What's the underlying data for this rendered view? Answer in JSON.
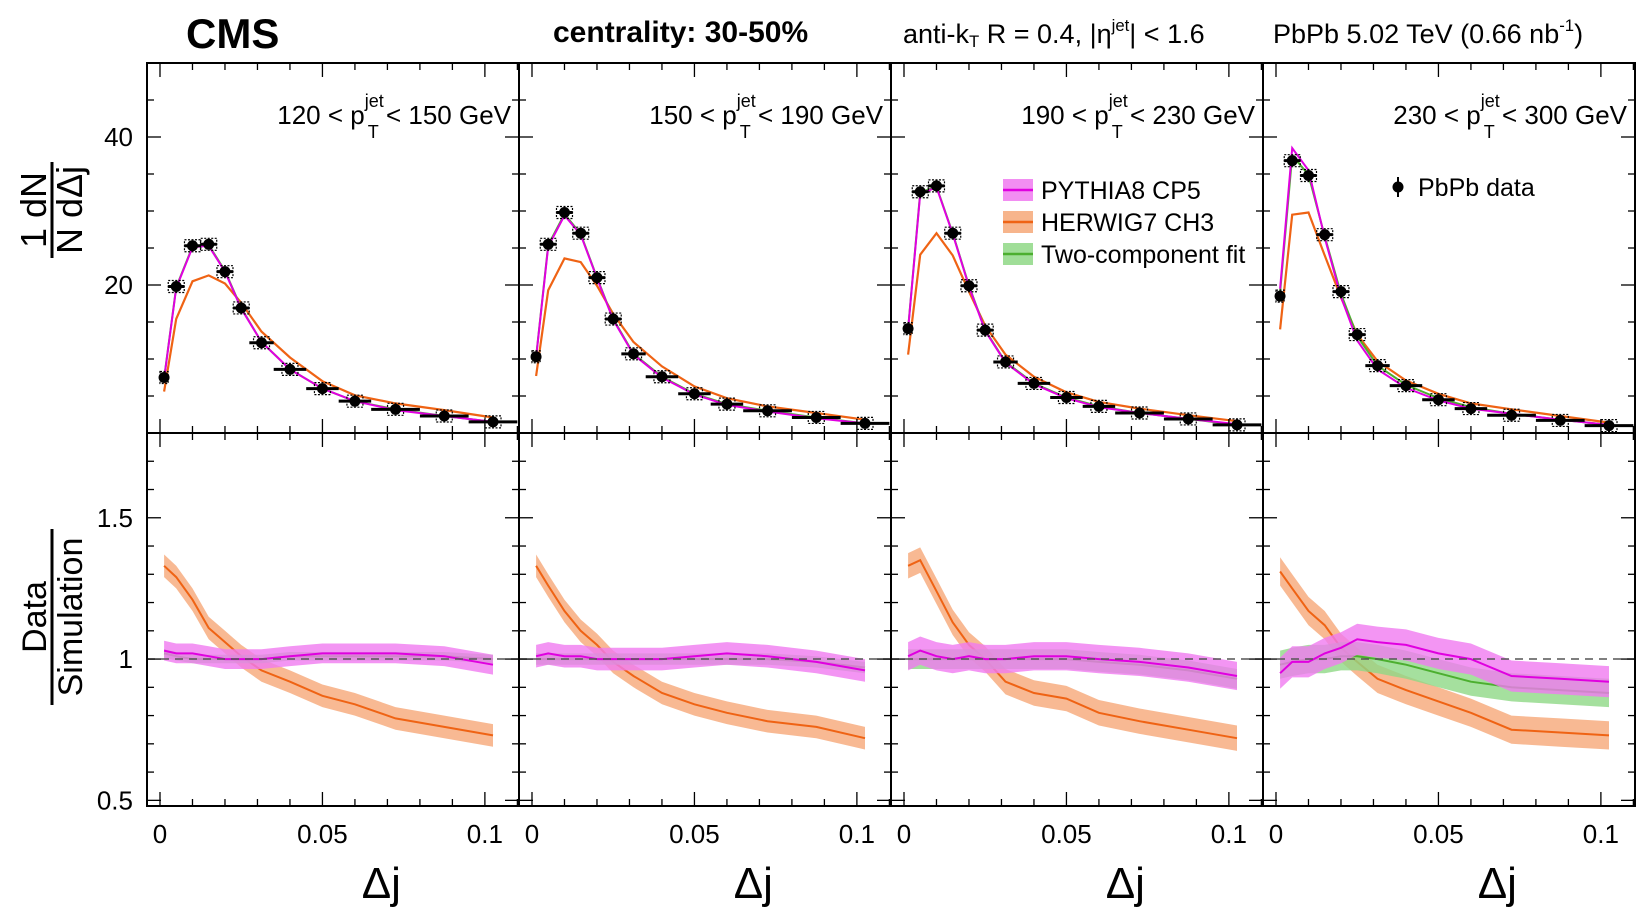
{
  "header": {
    "experiment": "CMS",
    "centrality": "centrality: 30-50%",
    "jet_sel_pre": "anti-k",
    "jet_sel_sub": "T",
    "jet_sel_mid": " R = 0.4, |η",
    "jet_sel_sup": "jet",
    "jet_sel_post": "| < 1.6",
    "collision_pre": "PbPb 5.02 TeV (0.66 nb",
    "collision_sup": "-1",
    "collision_post": ")"
  },
  "colors": {
    "data": "#000000",
    "pythia": "#e000e0",
    "pythia_band": "#f07af0",
    "herwig": "#ef6314",
    "herwig_band": "#f6a878",
    "fit": "#4caf2f",
    "fit_band": "#8fd886",
    "reference_line": "#555555"
  },
  "chart_data": {
    "type": "line",
    "xlabel": "Δj",
    "ylabel_top": "1/N dN/dΔj",
    "ylabel_bottom": "Data / Simulation",
    "xlim": [
      -0.004,
      0.1105
    ],
    "ylim_top": [
      0,
      50
    ],
    "ylim_bottom": [
      0.48,
      1.8
    ],
    "x_ticks": [
      0,
      0.05,
      0.1
    ],
    "x_tick_labels": [
      "0",
      "0.05",
      "0.1"
    ],
    "y_ticks_top": [
      20,
      40
    ],
    "y_ticks_bottom": [
      0.5,
      1,
      1.5
    ],
    "y_tick_labels_bottom": [
      "0.5",
      "1",
      "1.5"
    ],
    "reference_line_bottom": 1,
    "legend": {
      "entries": [
        "PYTHIA8 CP5",
        "HERWIG7 CH3",
        "Two-component fit"
      ],
      "data_entry": "PbPb data"
    },
    "x_bin_edges": [
      0,
      0.0025,
      0.0075,
      0.0125,
      0.0175,
      0.0225,
      0.0275,
      0.035,
      0.045,
      0.055,
      0.065,
      0.08,
      0.095,
      0.11
    ],
    "x_centers": [
      0.00125,
      0.005,
      0.01,
      0.015,
      0.02,
      0.025,
      0.03125,
      0.04,
      0.05,
      0.06,
      0.0725,
      0.0875,
      0.1025
    ],
    "panels": [
      {
        "pt_pre": "120 < p",
        "pt_sup": "jet",
        "pt_sub": "T",
        "pt_post": " < 150 GeV",
        "data": [
          7.5,
          19.8,
          25.3,
          25.5,
          21.8,
          16.9,
          12.2,
          8.6,
          6.0,
          4.3,
          3.2,
          2.3,
          1.5
        ],
        "pythia": [
          7.3,
          19.6,
          25.1,
          25.3,
          21.8,
          16.8,
          12.3,
          8.6,
          6.0,
          4.3,
          3.1,
          2.3,
          1.5
        ],
        "herwig": [
          5.6,
          15.4,
          20.5,
          21.3,
          20.2,
          17.6,
          13.7,
          10.2,
          7.0,
          5.1,
          4.0,
          3.1,
          2.1
        ],
        "fit": [
          7.4,
          19.7,
          25.2,
          25.4,
          21.9,
          16.9,
          12.3,
          8.6,
          6.0,
          4.3,
          3.2,
          2.3,
          1.5
        ],
        "ratio_pythia": [
          1.03,
          1.02,
          1.02,
          1.01,
          1.0,
          1.0,
          1.0,
          1.01,
          1.02,
          1.02,
          1.02,
          1.01,
          0.98
        ],
        "ratio_herwig": [
          1.33,
          1.29,
          1.21,
          1.11,
          1.06,
          1.01,
          0.96,
          0.92,
          0.87,
          0.84,
          0.79,
          0.76,
          0.73
        ],
        "ratio_fit": [
          1.02,
          1.01,
          1.0,
          1.0,
          1.0,
          1.0,
          1.0,
          1.01,
          1.01,
          1.01,
          1.01,
          1.01,
          1.0
        ],
        "ratio_pythia_err": 0.035,
        "ratio_herwig_err": 0.04,
        "ratio_fit_err": 0.015
      },
      {
        "pt_pre": "150 < p",
        "pt_sup": "jet",
        "pt_sub": "T",
        "pt_post": " < 190 GeV",
        "data": [
          10.3,
          25.5,
          29.8,
          27.0,
          21.0,
          15.4,
          10.7,
          7.6,
          5.3,
          3.9,
          3.0,
          2.1,
          1.3
        ],
        "pythia": [
          10.2,
          25.2,
          29.4,
          26.8,
          20.9,
          15.3,
          10.6,
          7.5,
          5.2,
          3.8,
          2.9,
          2.0,
          1.3
        ],
        "herwig": [
          7.7,
          19.3,
          23.6,
          23.1,
          19.9,
          16.1,
          12.3,
          9.0,
          6.3,
          4.7,
          3.6,
          2.7,
          1.8
        ],
        "fit": [
          10.3,
          25.4,
          29.6,
          26.9,
          21.0,
          15.4,
          10.7,
          7.6,
          5.3,
          3.9,
          3.0,
          2.1,
          1.3
        ],
        "ratio_pythia": [
          1.01,
          1.02,
          1.01,
          1.01,
          1.0,
          1.0,
          1.0,
          1.0,
          1.01,
          1.02,
          1.01,
          0.99,
          0.96
        ],
        "ratio_herwig": [
          1.33,
          1.26,
          1.17,
          1.1,
          1.05,
          0.99,
          0.94,
          0.88,
          0.84,
          0.81,
          0.78,
          0.76,
          0.72
        ],
        "ratio_fit": [
          1.0,
          1.0,
          1.0,
          1.0,
          1.0,
          1.0,
          1.0,
          1.0,
          1.0,
          1.0,
          1.0,
          0.99,
          0.97
        ],
        "ratio_pythia_err": 0.04,
        "ratio_herwig_err": 0.04,
        "ratio_fit_err": 0.02
      },
      {
        "pt_pre": "190 < p",
        "pt_sup": "jet",
        "pt_sub": "T",
        "pt_post": " < 230 GeV",
        "data": [
          14.1,
          32.6,
          33.4,
          27.0,
          19.9,
          13.9,
          9.6,
          6.7,
          4.8,
          3.6,
          2.7,
          1.9,
          1.1
        ],
        "pythia": [
          14.0,
          32.3,
          33.2,
          26.9,
          19.8,
          13.8,
          9.5,
          6.6,
          4.7,
          3.5,
          2.7,
          1.9,
          1.2
        ],
        "herwig": [
          10.6,
          24.1,
          27.0,
          24.0,
          19.1,
          14.5,
          10.6,
          7.6,
          5.5,
          4.2,
          3.3,
          2.4,
          1.6
        ],
        "fit": [
          14.1,
          32.5,
          33.3,
          27.0,
          19.9,
          13.9,
          9.6,
          6.7,
          4.8,
          3.6,
          2.7,
          1.9,
          1.1
        ],
        "ratio_pythia": [
          1.01,
          1.03,
          1.01,
          1.0,
          1.01,
          1.0,
          1.0,
          1.01,
          1.01,
          1.0,
          0.99,
          0.97,
          0.94
        ],
        "ratio_herwig": [
          1.33,
          1.35,
          1.24,
          1.13,
          1.05,
          1.0,
          0.92,
          0.88,
          0.86,
          0.81,
          0.78,
          0.75,
          0.72
        ],
        "ratio_fit": [
          1.0,
          1.0,
          1.0,
          1.0,
          1.0,
          1.0,
          1.0,
          1.0,
          1.0,
          0.99,
          0.98,
          0.96,
          0.93
        ],
        "ratio_pythia_err": 0.05,
        "ratio_herwig_err": 0.045,
        "ratio_fit_err": 0.035
      },
      {
        "pt_pre": "230 < p",
        "pt_sup": "jet",
        "pt_sub": "T",
        "pt_post": " < 300 GeV",
        "data": [
          18.5,
          36.8,
          34.8,
          26.8,
          19.1,
          13.3,
          9.1,
          6.4,
          4.5,
          3.3,
          2.4,
          1.7,
          1.0
        ],
        "pythia": [
          19.5,
          38.5,
          35.5,
          26.4,
          18.4,
          12.5,
          8.6,
          6.1,
          4.4,
          3.3,
          2.6,
          1.8,
          1.1
        ],
        "herwig": [
          14.0,
          29.5,
          29.8,
          24.0,
          18.3,
          13.3,
          9.7,
          7.1,
          5.3,
          4.0,
          3.2,
          2.3,
          1.4
        ],
        "fit": [
          19.0,
          37.5,
          34.9,
          26.6,
          18.8,
          13.1,
          9.1,
          6.5,
          4.7,
          3.5,
          2.6,
          1.8,
          1.1
        ],
        "ratio_pythia": [
          0.95,
          0.99,
          0.99,
          1.02,
          1.04,
          1.07,
          1.06,
          1.05,
          1.02,
          1.0,
          0.94,
          0.93,
          0.92
        ],
        "ratio_herwig": [
          1.31,
          1.25,
          1.17,
          1.12,
          1.04,
          0.99,
          0.93,
          0.89,
          0.85,
          0.81,
          0.75,
          0.74,
          0.73
        ],
        "ratio_fit": [
          0.98,
          0.99,
          1.0,
          1.0,
          1.01,
          1.01,
          1.0,
          0.98,
          0.95,
          0.92,
          0.9,
          0.89,
          0.88
        ],
        "ratio_pythia_err": 0.055,
        "ratio_herwig_err": 0.05,
        "ratio_fit_err": 0.05
      }
    ]
  }
}
